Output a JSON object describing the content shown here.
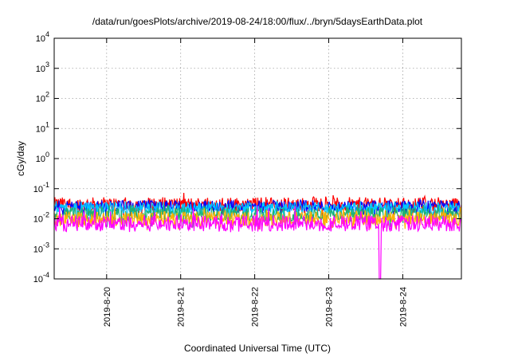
{
  "chart_data": {
    "type": "line",
    "title": "/data/run/goesPlots/archive/2019-08-24/18:00/flux/../bryn/5daysEarthData.plot",
    "xlabel": "Coordinated Universal Time (UTC)",
    "ylabel": "cGy/day",
    "yscale": "log",
    "ylim": [
      0.0001,
      10000
    ],
    "xlim": [
      "2019-08-19 07:00",
      "2019-08-24 19:00"
    ],
    "y_ticks": [
      {
        "value": 0.0001,
        "base": "10",
        "exp": "-4"
      },
      {
        "value": 0.001,
        "base": "10",
        "exp": "-3"
      },
      {
        "value": 0.01,
        "base": "10",
        "exp": "-2"
      },
      {
        "value": 0.1,
        "base": "10",
        "exp": "-1"
      },
      {
        "value": 1,
        "base": "10",
        "exp": "0"
      },
      {
        "value": 10,
        "base": "10",
        "exp": "1"
      },
      {
        "value": 100,
        "base": "10",
        "exp": "2"
      },
      {
        "value": 1000,
        "base": "10",
        "exp": "3"
      },
      {
        "value": 10000,
        "base": "10",
        "exp": "4"
      }
    ],
    "x_ticks": [
      "2019-8-20",
      "2019-8-21",
      "2019-8-22",
      "2019-8-23",
      "2019-8-24"
    ],
    "grid": true,
    "series": [
      {
        "color": "#ff0000",
        "level": 0.03,
        "min": 0.012,
        "max": 0.075
      },
      {
        "color": "#0000ff",
        "level": 0.026,
        "min": 0.01,
        "max": 0.045
      },
      {
        "color": "#00c8ff",
        "level": 0.023,
        "min": 0.009,
        "max": 0.04
      },
      {
        "color": "#20b070",
        "level": 0.014,
        "min": 0.005,
        "max": 0.03
      },
      {
        "color": "#ffb000",
        "level": 0.01,
        "min": 0.004,
        "max": 0.025
      },
      {
        "color": "#ff00ff",
        "level": 0.007,
        "min": 0.0035,
        "max": 0.028,
        "dropout": {
          "x": "2019-08-23 16:30",
          "min": 0.0001
        }
      }
    ]
  }
}
